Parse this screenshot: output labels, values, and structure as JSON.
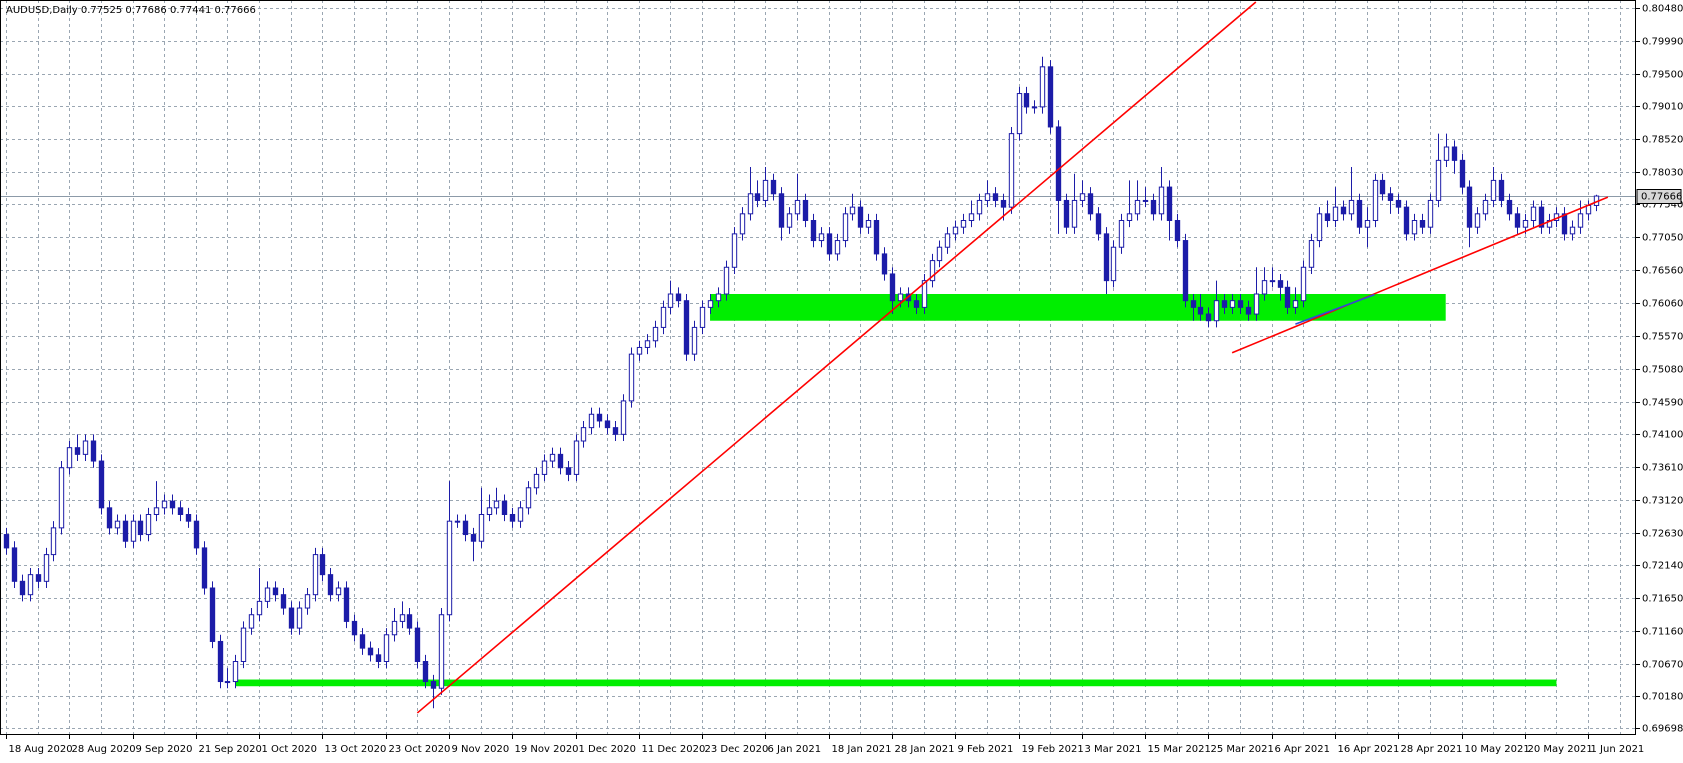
{
  "chart_data": {
    "type": "candlestick",
    "title": "AUDUSD,Daily  0.77525 0.77686 0.77441 0.77666",
    "color": "#1c1ca8",
    "grid": true,
    "current_price": 0.77666,
    "ylim": [
      0.696,
      0.806
    ],
    "yticks": [
      {
        "value": 0.8048,
        "label": "0.80480"
      },
      {
        "value": 0.7999,
        "label": "0.79990"
      },
      {
        "value": 0.795,
        "label": "0.79500"
      },
      {
        "value": 0.7901,
        "label": "0.79010"
      },
      {
        "value": 0.7852,
        "label": "0.78520"
      },
      {
        "value": 0.7803,
        "label": "0.78030"
      },
      {
        "value": 0.7754,
        "label": "0.77540"
      },
      {
        "value": 0.7705,
        "label": "0.77050"
      },
      {
        "value": 0.7656,
        "label": "0.76560"
      },
      {
        "value": 0.7606,
        "label": "0.76060"
      },
      {
        "value": 0.7557,
        "label": "0.75570"
      },
      {
        "value": 0.7508,
        "label": "0.75080"
      },
      {
        "value": 0.7459,
        "label": "0.74590"
      },
      {
        "value": 0.741,
        "label": "0.74100"
      },
      {
        "value": 0.7361,
        "label": "0.73610"
      },
      {
        "value": 0.7312,
        "label": "0.73120"
      },
      {
        "value": 0.7263,
        "label": "0.72630"
      },
      {
        "value": 0.7214,
        "label": "0.72140"
      },
      {
        "value": 0.7165,
        "label": "0.71650"
      },
      {
        "value": 0.7116,
        "label": "0.71160"
      },
      {
        "value": 0.7067,
        "label": "0.70670"
      },
      {
        "value": 0.7018,
        "label": "0.70180"
      },
      0.69698
    ],
    "categories": [
      "18 Aug 2020",
      null,
      null,
      null,
      null,
      null,
      null,
      null,
      "28 Aug 2020",
      null,
      null,
      null,
      null,
      null,
      null,
      null,
      "9 Sep 2020",
      null,
      null,
      null,
      null,
      null,
      null,
      null,
      "21 Sep 2020",
      null,
      null,
      null,
      null,
      null,
      null,
      null,
      "1 Oct 2020",
      null,
      null,
      null,
      null,
      null,
      null,
      null,
      "13 Oct 2020",
      null,
      null,
      null,
      null,
      null,
      null,
      null,
      "23 Oct 2020",
      null,
      null,
      null,
      null,
      null,
      null,
      null,
      "9 Nov 2020",
      null,
      null,
      null,
      null,
      null,
      null,
      null,
      "19 Nov 2020",
      null,
      null,
      null,
      null,
      null,
      null,
      null,
      "1 Dec 2020",
      null,
      null,
      null,
      null,
      null,
      null,
      null,
      "11 Dec 2020",
      null,
      null,
      null,
      null,
      null,
      null,
      null,
      "23 Dec 2020",
      null,
      null,
      null,
      null,
      null,
      null,
      null,
      "6 Jan 2021",
      null,
      null,
      null,
      null,
      null,
      null,
      null,
      "18 Jan 2021",
      null,
      null,
      null,
      null,
      null,
      null,
      null,
      "28 Jan 2021",
      null,
      null,
      null,
      null,
      null,
      null,
      null,
      "9 Feb 2021",
      null,
      null,
      null,
      null,
      null,
      null,
      null,
      "19 Feb 2021",
      null,
      null,
      null,
      null,
      null,
      null,
      null,
      "3 Mar 2021",
      null,
      null,
      null,
      null,
      null,
      null,
      null,
      "15 Mar 2021",
      null,
      null,
      null,
      null,
      null,
      null,
      null,
      "25 Mar 2021",
      null,
      null,
      null,
      null,
      null,
      null,
      null,
      "6 Apr 2021",
      null,
      null,
      null,
      null,
      null,
      null,
      null,
      "16 Apr 2021",
      null,
      null,
      null,
      null,
      null,
      null,
      null,
      "28 Apr 2021",
      null,
      null,
      null,
      null,
      null,
      null,
      null,
      "10 May 2021",
      null,
      null,
      null,
      null,
      null,
      null,
      null,
      "20 May 2021",
      null,
      null,
      null,
      null,
      null,
      null,
      null,
      "1 Jun 2021",
      null
    ],
    "open": [
      0.726,
      0.724,
      0.719,
      0.717,
      0.72,
      0.719,
      0.723,
      0.727,
      0.736,
      0.739,
      0.738,
      0.74,
      0.737,
      0.73,
      0.727,
      0.728,
      0.725,
      0.728,
      0.726,
      0.729,
      0.73,
      0.731,
      0.73,
      0.729,
      0.728,
      0.724,
      0.718,
      0.71,
      0.704,
      0.704,
      0.707,
      0.712,
      0.714,
      0.716,
      0.718,
      0.717,
      0.715,
      0.712,
      0.715,
      0.717,
      0.723,
      0.72,
      0.717,
      0.718,
      0.713,
      0.711,
      0.709,
      0.708,
      0.707,
      0.711,
      0.713,
      0.714,
      0.712,
      0.707,
      0.704,
      0.703,
      0.714,
      0.728,
      0.728,
      0.726,
      0.725,
      0.729,
      0.73,
      0.731,
      0.729,
      0.728,
      0.73,
      0.733,
      0.735,
      0.737,
      0.738,
      0.736,
      0.735,
      0.74,
      0.742,
      0.744,
      0.743,
      0.742,
      0.741,
      0.746,
      0.753,
      0.754,
      0.755,
      0.757,
      0.76,
      0.762,
      0.761,
      0.753,
      0.757,
      0.76,
      0.761,
      0.762,
      0.766,
      0.771,
      0.774,
      0.777,
      0.776,
      0.779,
      0.777,
      0.772,
      0.774,
      0.776,
      0.773,
      0.77,
      0.771,
      0.768,
      0.77,
      0.774,
      0.775,
      0.772,
      0.773,
      0.768,
      0.765,
      0.761,
      0.762,
      0.761,
      0.76,
      0.764,
      0.767,
      0.769,
      0.771,
      0.772,
      0.773,
      0.774,
      0.776,
      0.777,
      0.776,
      0.775,
      0.786,
      0.792,
      0.79,
      0.79,
      0.796,
      0.787,
      0.776,
      0.772,
      0.776,
      0.777,
      0.774,
      0.771,
      0.764,
      0.769,
      0.773,
      0.774,
      0.776,
      0.776,
      0.774,
      0.778,
      0.773,
      0.77,
      0.761,
      0.76,
      0.759,
      0.758,
      0.761,
      0.76,
      0.761,
      0.76,
      0.759,
      0.762,
      0.764,
      0.764,
      0.763,
      0.76,
      0.761,
      0.766,
      0.77,
      0.774,
      0.773,
      0.775,
      0.774,
      0.776,
      0.772,
      0.773,
      0.779,
      0.777,
      0.776,
      0.775,
      0.771,
      0.773,
      0.772,
      0.776,
      0.782,
      0.784,
      0.782,
      0.778,
      0.772,
      0.774,
      0.776,
      0.779,
      0.776,
      0.774,
      0.772,
      0.773,
      0.775,
      0.772,
      0.773,
      0.774,
      0.771,
      0.772,
      0.774,
      0.77525
    ],
    "high": [
      0.727,
      0.725,
      0.72,
      0.721,
      0.721,
      0.724,
      0.728,
      0.737,
      0.74,
      0.741,
      0.741,
      0.741,
      0.738,
      0.731,
      0.729,
      0.729,
      0.729,
      0.729,
      0.73,
      0.734,
      0.732,
      0.732,
      0.731,
      0.73,
      0.729,
      0.725,
      0.719,
      0.711,
      0.706,
      0.708,
      0.713,
      0.715,
      0.721,
      0.719,
      0.719,
      0.718,
      0.716,
      0.716,
      0.718,
      0.724,
      0.724,
      0.721,
      0.719,
      0.719,
      0.714,
      0.712,
      0.71,
      0.709,
      0.712,
      0.715,
      0.716,
      0.715,
      0.713,
      0.708,
      0.705,
      0.715,
      0.734,
      0.729,
      0.729,
      0.727,
      0.733,
      0.732,
      0.733,
      0.732,
      0.73,
      0.731,
      0.734,
      0.736,
      0.738,
      0.739,
      0.739,
      0.737,
      0.741,
      0.743,
      0.745,
      0.745,
      0.744,
      0.743,
      0.747,
      0.754,
      0.755,
      0.756,
      0.758,
      0.761,
      0.764,
      0.763,
      0.762,
      0.758,
      0.761,
      0.762,
      0.763,
      0.767,
      0.772,
      0.775,
      0.781,
      0.779,
      0.781,
      0.78,
      0.778,
      0.775,
      0.78,
      0.777,
      0.774,
      0.772,
      0.772,
      0.771,
      0.775,
      0.777,
      0.776,
      0.774,
      0.774,
      0.769,
      0.766,
      0.763,
      0.763,
      0.762,
      0.765,
      0.768,
      0.77,
      0.772,
      0.773,
      0.774,
      0.776,
      0.777,
      0.779,
      0.778,
      0.777,
      0.787,
      0.793,
      0.793,
      0.791,
      0.7975,
      0.797,
      0.788,
      0.777,
      0.78,
      0.779,
      0.778,
      0.775,
      0.772,
      0.77,
      0.774,
      0.779,
      0.779,
      0.778,
      0.777,
      0.781,
      0.779,
      0.774,
      0.771,
      0.762,
      0.762,
      0.76,
      0.764,
      0.762,
      0.762,
      0.762,
      0.761,
      0.766,
      0.766,
      0.766,
      0.765,
      0.764,
      0.763,
      0.767,
      0.771,
      0.775,
      0.776,
      0.778,
      0.776,
      0.781,
      0.777,
      0.775,
      0.78,
      0.78,
      0.778,
      0.777,
      0.776,
      0.774,
      0.774,
      0.777,
      0.786,
      0.786,
      0.785,
      0.783,
      0.779,
      0.775,
      0.777,
      0.781,
      0.78,
      0.777,
      0.775,
      0.774,
      0.776,
      0.776,
      0.774,
      0.775,
      0.775,
      0.773,
      0.776,
      0.776,
      0.77686
    ],
    "low": [
      0.723,
      0.718,
      0.716,
      0.716,
      0.718,
      0.718,
      0.722,
      0.726,
      0.735,
      0.737,
      0.737,
      0.736,
      0.729,
      0.726,
      0.726,
      0.724,
      0.724,
      0.725,
      0.725,
      0.728,
      0.729,
      0.729,
      0.728,
      0.727,
      0.723,
      0.717,
      0.709,
      0.703,
      0.703,
      0.703,
      0.706,
      0.711,
      0.713,
      0.715,
      0.716,
      0.714,
      0.711,
      0.711,
      0.714,
      0.716,
      0.719,
      0.716,
      0.716,
      0.712,
      0.71,
      0.708,
      0.707,
      0.706,
      0.706,
      0.71,
      0.712,
      0.711,
      0.706,
      0.703,
      0.7,
      0.702,
      0.713,
      0.727,
      0.725,
      0.722,
      0.724,
      0.728,
      0.729,
      0.728,
      0.727,
      0.727,
      0.729,
      0.732,
      0.734,
      0.736,
      0.735,
      0.734,
      0.734,
      0.739,
      0.741,
      0.742,
      0.741,
      0.74,
      0.74,
      0.745,
      0.752,
      0.753,
      0.754,
      0.756,
      0.759,
      0.76,
      0.752,
      0.752,
      0.756,
      0.759,
      0.76,
      0.761,
      0.765,
      0.77,
      0.773,
      0.775,
      0.775,
      0.776,
      0.77,
      0.771,
      0.773,
      0.772,
      0.769,
      0.769,
      0.767,
      0.767,
      0.769,
      0.773,
      0.771,
      0.771,
      0.767,
      0.764,
      0.759,
      0.76,
      0.76,
      0.759,
      0.759,
      0.763,
      0.766,
      0.768,
      0.77,
      0.771,
      0.772,
      0.773,
      0.775,
      0.775,
      0.773,
      0.774,
      0.785,
      0.789,
      0.789,
      0.789,
      0.786,
      0.771,
      0.771,
      0.771,
      0.775,
      0.773,
      0.77,
      0.762,
      0.763,
      0.768,
      0.772,
      0.773,
      0.775,
      0.773,
      0.773,
      0.77,
      0.769,
      0.76,
      0.758,
      0.758,
      0.757,
      0.757,
      0.759,
      0.759,
      0.759,
      0.758,
      0.758,
      0.761,
      0.763,
      0.761,
      0.759,
      0.759,
      0.76,
      0.765,
      0.769,
      0.772,
      0.772,
      0.773,
      0.773,
      0.771,
      0.769,
      0.772,
      0.776,
      0.774,
      0.774,
      0.77,
      0.77,
      0.771,
      0.771,
      0.775,
      0.781,
      0.78,
      0.777,
      0.769,
      0.771,
      0.773,
      0.775,
      0.775,
      0.773,
      0.771,
      0.771,
      0.772,
      0.771,
      0.771,
      0.772,
      0.77,
      0.77,
      0.771,
      0.773,
      0.77441
    ],
    "close": [
      0.724,
      0.719,
      0.717,
      0.72,
      0.719,
      0.723,
      0.727,
      0.736,
      0.739,
      0.738,
      0.74,
      0.737,
      0.73,
      0.727,
      0.728,
      0.725,
      0.728,
      0.726,
      0.729,
      0.73,
      0.731,
      0.73,
      0.729,
      0.728,
      0.724,
      0.718,
      0.71,
      0.704,
      0.704,
      0.707,
      0.712,
      0.714,
      0.716,
      0.718,
      0.717,
      0.715,
      0.712,
      0.715,
      0.717,
      0.723,
      0.72,
      0.717,
      0.718,
      0.713,
      0.711,
      0.709,
      0.708,
      0.707,
      0.711,
      0.713,
      0.714,
      0.712,
      0.707,
      0.704,
      0.703,
      0.714,
      0.728,
      0.728,
      0.726,
      0.725,
      0.729,
      0.73,
      0.731,
      0.729,
      0.728,
      0.73,
      0.733,
      0.735,
      0.737,
      0.738,
      0.736,
      0.735,
      0.74,
      0.742,
      0.744,
      0.743,
      0.742,
      0.741,
      0.746,
      0.753,
      0.754,
      0.755,
      0.757,
      0.76,
      0.762,
      0.761,
      0.753,
      0.757,
      0.76,
      0.761,
      0.762,
      0.766,
      0.771,
      0.774,
      0.777,
      0.776,
      0.779,
      0.777,
      0.772,
      0.774,
      0.776,
      0.773,
      0.77,
      0.771,
      0.768,
      0.77,
      0.774,
      0.775,
      0.772,
      0.773,
      0.768,
      0.765,
      0.761,
      0.762,
      0.761,
      0.76,
      0.764,
      0.767,
      0.769,
      0.771,
      0.772,
      0.773,
      0.774,
      0.776,
      0.777,
      0.776,
      0.775,
      0.786,
      0.792,
      0.79,
      0.79,
      0.796,
      0.787,
      0.776,
      0.772,
      0.776,
      0.777,
      0.774,
      0.771,
      0.764,
      0.769,
      0.773,
      0.774,
      0.776,
      0.776,
      0.774,
      0.778,
      0.773,
      0.77,
      0.761,
      0.76,
      0.759,
      0.758,
      0.761,
      0.76,
      0.761,
      0.76,
      0.759,
      0.762,
      0.764,
      0.764,
      0.763,
      0.76,
      0.761,
      0.766,
      0.77,
      0.774,
      0.773,
      0.775,
      0.774,
      0.776,
      0.772,
      0.773,
      0.779,
      0.777,
      0.776,
      0.775,
      0.771,
      0.773,
      0.772,
      0.776,
      0.782,
      0.784,
      0.782,
      0.778,
      0.772,
      0.774,
      0.776,
      0.779,
      0.776,
      0.774,
      0.772,
      0.773,
      0.775,
      0.772,
      0.773,
      0.774,
      0.771,
      0.772,
      0.774,
      0.77525,
      0.77666
    ],
    "zones": [
      {
        "x": [
          89,
          182
        ],
        "y": [
          0.758,
          0.762
        ],
        "color": "#00ee00"
      },
      {
        "x": [
          29,
          196
        ],
        "y": [
          0.7033,
          0.7043
        ],
        "color": "#00ee00"
      }
    ],
    "trendlines": [
      {
        "x": [
          52,
          158
        ],
        "y": [
          0.6993,
          0.8057
        ],
        "color": "#ff0000"
      },
      {
        "x": [
          155,
          202.5
        ],
        "y": [
          0.7532,
          0.7765
        ],
        "color": "#ff0000"
      },
      {
        "x": [
          163,
          173
        ],
        "y": [
          0.7575,
          0.7619
        ],
        "color": "#2a4fd8"
      }
    ]
  }
}
